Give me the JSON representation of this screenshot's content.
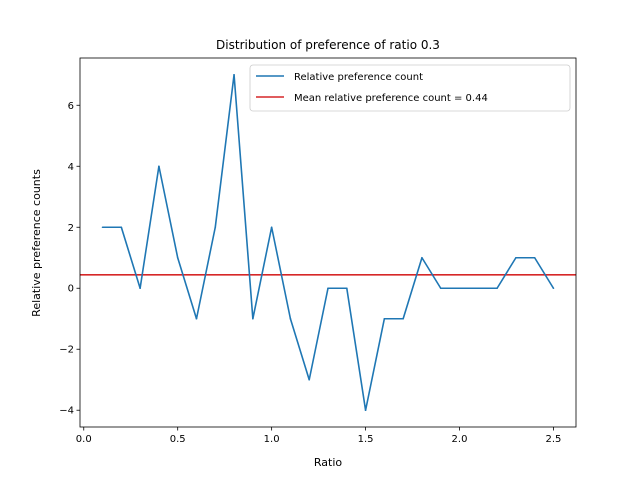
{
  "chart_data": {
    "type": "line",
    "title": "Distribution of preference of ratio 0.3",
    "xlabel": "Ratio",
    "ylabel": "Relative preference counts",
    "xlim": [
      -0.02,
      2.62
    ],
    "ylim": [
      -4.55,
      7.55
    ],
    "x_ticks": [
      0.0,
      0.5,
      1.0,
      1.5,
      2.0,
      2.5
    ],
    "x_tick_labels": [
      "0.0",
      "0.5",
      "1.0",
      "1.5",
      "2.0",
      "2.5"
    ],
    "y_ticks": [
      -4,
      -2,
      0,
      2,
      4,
      6
    ],
    "y_tick_labels": [
      "−4",
      "−2",
      "0",
      "2",
      "4",
      "6"
    ],
    "grid": false,
    "legend_position": "top-right",
    "series": [
      {
        "name": "Relative preference count",
        "color": "#1f77b4",
        "x": [
          0.1,
          0.2,
          0.3,
          0.4,
          0.5,
          0.6,
          0.7,
          0.8,
          0.9,
          1.0,
          1.1,
          1.2,
          1.3,
          1.4,
          1.5,
          1.6,
          1.7,
          1.8,
          1.9,
          2.0,
          2.1,
          2.2,
          2.3,
          2.4,
          2.5
        ],
        "y": [
          2,
          2,
          0,
          4,
          1,
          -1,
          2,
          7,
          -1,
          2,
          -1,
          -3,
          0,
          0,
          -4,
          -1,
          -1,
          1,
          0,
          0,
          0,
          0,
          1,
          1,
          0
        ]
      }
    ],
    "hlines": [
      {
        "name": "Mean relative preference count = 0.44",
        "color": "#d62728",
        "y": 0.44
      }
    ]
  }
}
